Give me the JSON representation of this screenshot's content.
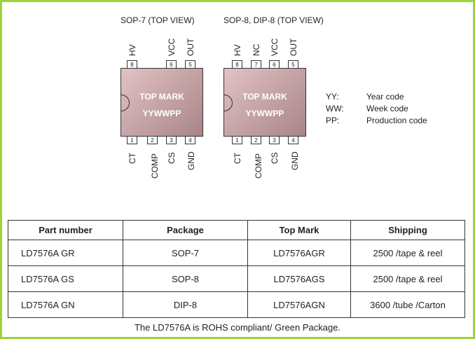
{
  "diagrams": [
    {
      "title": "SOP-7 (TOP VIEW)",
      "top_mark": "TOP MARK",
      "code": "YYWWPP",
      "top_pins": [
        {
          "num": "8",
          "name": "HV"
        },
        {
          "num": "6",
          "name": "VCC"
        },
        {
          "num": "5",
          "name": "OUT"
        }
      ],
      "bottom_pins": [
        {
          "num": "1",
          "name": "CT"
        },
        {
          "num": "2",
          "name": "COMP"
        },
        {
          "num": "3",
          "name": "CS"
        },
        {
          "num": "4",
          "name": "GND"
        }
      ]
    },
    {
      "title": "SOP-8, DIP-8 (TOP VIEW)",
      "top_mark": "TOP MARK",
      "code": "YYWWPP",
      "top_pins": [
        {
          "num": "8",
          "name": "HV"
        },
        {
          "num": "7",
          "name": "NC"
        },
        {
          "num": "6",
          "name": "VCC"
        },
        {
          "num": "5",
          "name": "OUT"
        }
      ],
      "bottom_pins": [
        {
          "num": "1",
          "name": "CT"
        },
        {
          "num": "2",
          "name": "COMP"
        },
        {
          "num": "3",
          "name": "CS"
        },
        {
          "num": "4",
          "name": "GND"
        }
      ]
    }
  ],
  "legend": [
    {
      "key": "YY:",
      "desc": "Year code"
    },
    {
      "key": "WW:",
      "desc": "Week code"
    },
    {
      "key": "PP:",
      "desc": "Production code"
    }
  ],
  "table": {
    "headers": [
      "Part number",
      "Package",
      "Top Mark",
      "Shipping"
    ],
    "rows": [
      [
        "LD7576A GR",
        "SOP-7",
        "LD7576AGR",
        "2500 /tape & reel"
      ],
      [
        "LD7576A GS",
        "SOP-8",
        "LD7576AGS",
        "2500 /tape & reel"
      ],
      [
        "LD7576A GN",
        "DIP-8",
        "LD7576AGN",
        "3600 /tube /Carton"
      ]
    ]
  },
  "footer": "The LD7576A is ROHS compliant/ Green Package.",
  "colors": {
    "border": "#9bd33c",
    "chip": "#c9a7a9"
  }
}
